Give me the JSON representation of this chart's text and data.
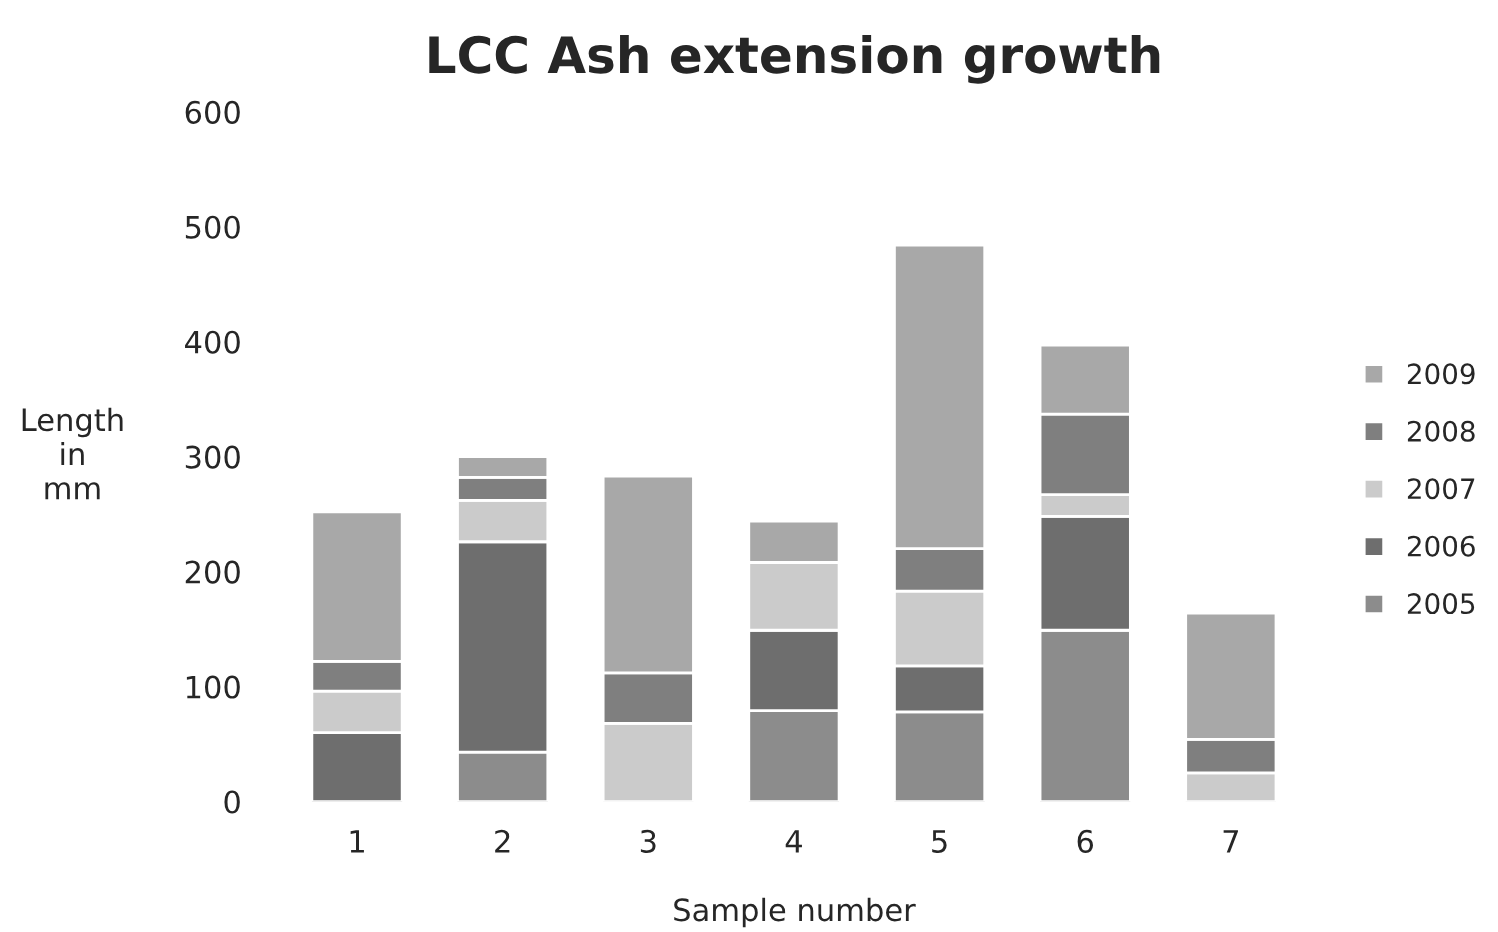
{
  "chart_data": {
    "type": "bar",
    "title": "LCC Ash extension growth",
    "xlabel": "Sample number",
    "ylabel": "Length\nin\nmm",
    "categories": [
      "1",
      "2",
      "3",
      "4",
      "5",
      "6",
      "7"
    ],
    "stacked": true,
    "series": [
      {
        "name": "2005",
        "color": "#8c8c8c",
        "values": [
          0,
          43,
          0,
          79,
          78,
          149,
          0
        ]
      },
      {
        "name": "2006",
        "color": "#6e6e6e",
        "values": [
          60,
          183,
          0,
          70,
          40,
          99,
          0
        ]
      },
      {
        "name": "2007",
        "color": "#cbcbcb",
        "values": [
          36,
          36,
          68,
          59,
          65,
          19,
          25
        ]
      },
      {
        "name": "2008",
        "color": "#7f7f7f",
        "values": [
          26,
          20,
          44,
          0,
          37,
          70,
          29
        ]
      },
      {
        "name": "2009",
        "color": "#a8a8a8",
        "values": [
          130,
          18,
          171,
          36,
          264,
          60,
          110
        ]
      }
    ],
    "ylim": [
      0,
      600
    ],
    "yticks": [
      0,
      100,
      200,
      300,
      400,
      500,
      600
    ],
    "grid": false,
    "legend": "right"
  }
}
